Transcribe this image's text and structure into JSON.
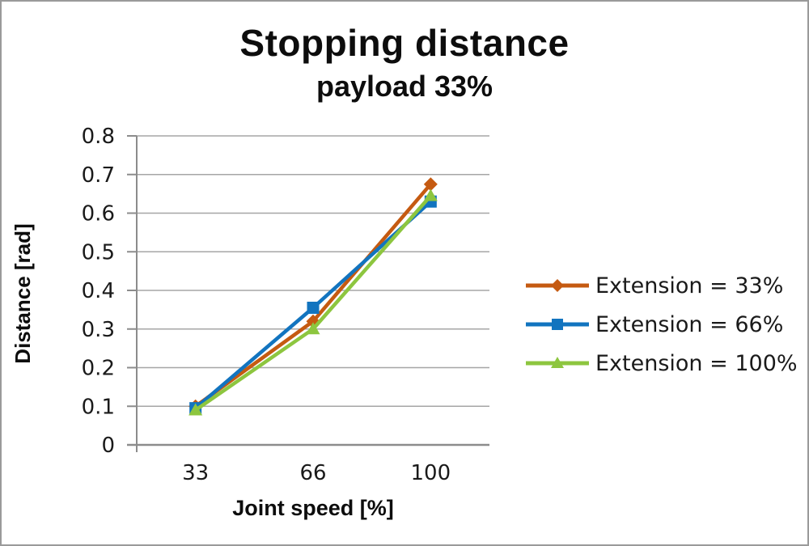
{
  "chart_data": {
    "type": "line",
    "title": "Stopping distance",
    "subtitle": "payload 33%",
    "xlabel": "Joint speed [%]",
    "ylabel": "Distance [rad]",
    "x_axis_type": "category",
    "categories": [
      "33",
      "66",
      "100"
    ],
    "ylim": [
      0,
      0.8
    ],
    "yticks": [
      0,
      0.1,
      0.2,
      0.3,
      0.4,
      0.5,
      0.6,
      0.7,
      0.8
    ],
    "ytick_labels": [
      "0",
      "0.1",
      "0.2",
      "0.3",
      "0.4",
      "0.5",
      "0.6",
      "0.7",
      "0.8"
    ],
    "grid": "horizontal",
    "legend_position": "right",
    "series": [
      {
        "name": "Extension = 33%",
        "values": [
          0.1,
          0.32,
          0.675
        ],
        "color": "#C55A11",
        "marker": "diamond"
      },
      {
        "name": "Extension = 66%",
        "values": [
          0.095,
          0.355,
          0.63
        ],
        "color": "#1274BF",
        "marker": "square"
      },
      {
        "name": "Extension = 100%",
        "values": [
          0.09,
          0.3,
          0.645
        ],
        "color": "#8DC63F",
        "marker": "triangle"
      }
    ],
    "colors": {
      "gridline": "#A6A6A6",
      "axis": "#8C8C8C",
      "text": "#1A1A1A",
      "title": "#0D0D0D",
      "background": "#FFFFFF",
      "border": "#9A9A9A"
    }
  }
}
